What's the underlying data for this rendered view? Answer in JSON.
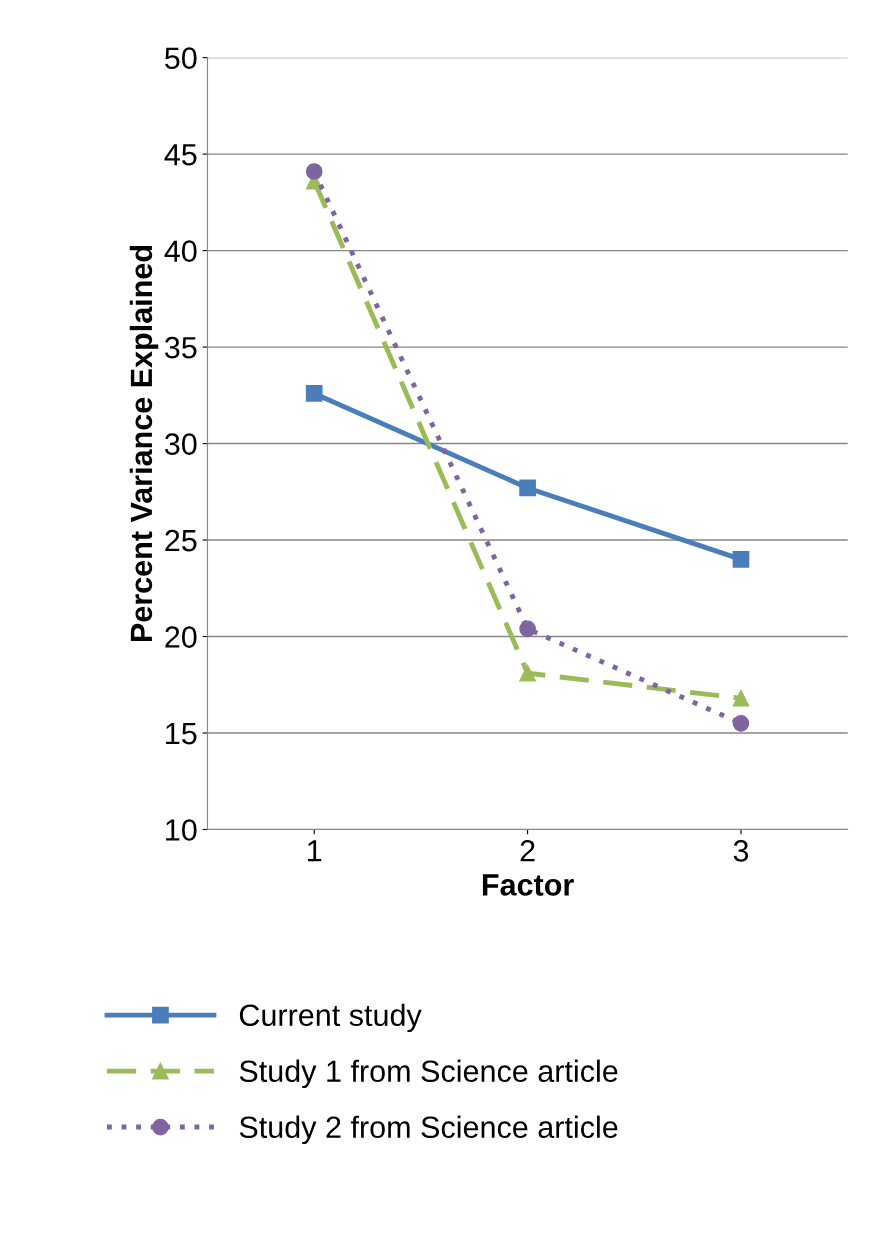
{
  "chart_data": {
    "type": "line",
    "xlabel": "Factor",
    "ylabel": "Percent Variance Explained",
    "categories": [
      "1",
      "2",
      "3"
    ],
    "series": [
      {
        "name": "Current study",
        "color": "#4a7ebb",
        "values": [
          32.6,
          27.7,
          24.0
        ],
        "marker": "square",
        "line_style": "solid"
      },
      {
        "name": "Study 1 from Science article",
        "color": "#9bbb59",
        "values": [
          43.6,
          18.1,
          16.8
        ],
        "marker": "triangle",
        "line_style": "dashed"
      },
      {
        "name": "Study 2 from Science article",
        "color": "#8064a2",
        "values": [
          44.1,
          20.4,
          15.5
        ],
        "marker": "circle",
        "line_style": "dotted"
      }
    ],
    "ylim": [
      10,
      50
    ],
    "yticks": [
      10,
      15,
      20,
      25,
      30,
      35,
      40,
      45,
      50
    ],
    "grid": "y",
    "legend": "bottom"
  }
}
